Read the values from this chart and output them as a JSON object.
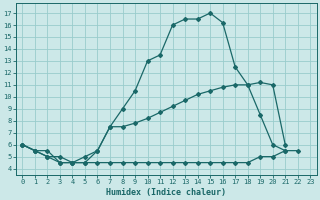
{
  "xlabel": "Humidex (Indice chaleur)",
  "bg_color": "#cce8e8",
  "grid_color": "#99cccc",
  "line_color": "#1a6868",
  "xlim": [
    -0.5,
    23.5
  ],
  "ylim": [
    3.5,
    17.8
  ],
  "xticks": [
    0,
    1,
    2,
    3,
    4,
    5,
    6,
    7,
    8,
    9,
    10,
    11,
    12,
    13,
    14,
    15,
    16,
    17,
    18,
    19,
    20,
    21,
    22,
    23
  ],
  "yticks": [
    4,
    5,
    6,
    7,
    8,
    9,
    10,
    11,
    12,
    13,
    14,
    15,
    16,
    17
  ],
  "curve1_x": [
    0,
    1,
    2,
    3,
    4,
    5,
    6,
    7,
    8,
    9,
    10,
    11,
    12,
    13,
    14,
    15,
    16,
    17,
    18,
    19,
    20,
    21
  ],
  "curve1_y": [
    6.0,
    5.5,
    5.5,
    4.5,
    4.5,
    4.5,
    5.5,
    7.5,
    9.0,
    10.5,
    13.0,
    13.5,
    16.0,
    16.5,
    16.5,
    17.0,
    16.2,
    12.5,
    11.0,
    8.5,
    6.0,
    5.5
  ],
  "curve2_x": [
    0,
    1,
    2,
    3,
    4,
    5,
    6,
    7,
    8,
    9,
    10,
    11,
    12,
    13,
    14,
    15,
    16,
    17,
    18,
    19,
    20,
    21
  ],
  "curve2_y": [
    6.0,
    5.5,
    5.0,
    5.0,
    4.5,
    5.0,
    5.5,
    7.5,
    7.5,
    7.8,
    8.2,
    8.7,
    9.2,
    9.7,
    10.2,
    10.5,
    10.8,
    11.0,
    11.0,
    11.2,
    11.0,
    6.0
  ],
  "curve3_x": [
    0,
    1,
    2,
    3,
    4,
    5,
    6,
    7,
    8,
    9,
    10,
    11,
    12,
    13,
    14,
    15,
    16,
    17,
    18,
    19,
    20,
    21,
    22
  ],
  "curve3_y": [
    6.0,
    5.5,
    5.0,
    4.5,
    4.5,
    4.5,
    4.5,
    4.5,
    4.5,
    4.5,
    4.5,
    4.5,
    4.5,
    4.5,
    4.5,
    4.5,
    4.5,
    4.5,
    4.5,
    5.0,
    5.0,
    5.5,
    5.5
  ]
}
